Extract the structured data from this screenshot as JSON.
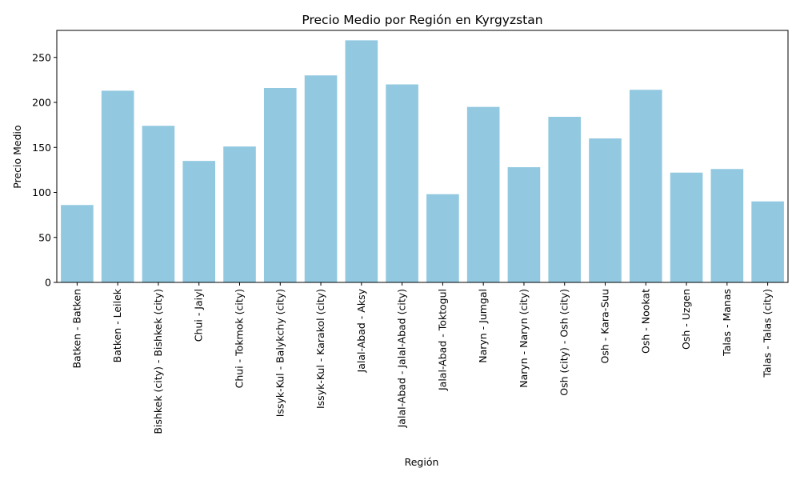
{
  "chart_data": {
    "type": "bar",
    "title": "Precio Medio por Región en Kyrgyzstan",
    "xlabel": "Región",
    "ylabel": "Precio Medio",
    "ylim": [
      0,
      280
    ],
    "yticks": [
      0,
      50,
      100,
      150,
      200,
      250
    ],
    "bar_color": "#92c9e0",
    "grid": false,
    "categories": [
      "Batken - Batken",
      "Batken - Leilek",
      "Bishkek (city) - Bishkek (city)",
      "Chui - Jaiyl",
      "Chui - Tokmok (city)",
      "Issyk-Kul - Balykchy (city)",
      "Issyk-Kul - Karakol (city)",
      "Jalal-Abad - Aksy",
      "Jalal-Abad - Jalal-Abad (city)",
      "Jalal-Abad - Toktogul",
      "Naryn - Jumgal",
      "Naryn - Naryn (city)",
      "Osh (city) - Osh (city)",
      "Osh - Kara-Suu",
      "Osh - Nookat",
      "Osh - Uzgen",
      "Talas - Manas",
      "Talas - Talas (city)"
    ],
    "values": [
      86,
      213,
      174,
      135,
      151,
      216,
      230,
      269,
      220,
      98,
      195,
      128,
      184,
      160,
      214,
      122,
      126,
      90
    ]
  }
}
